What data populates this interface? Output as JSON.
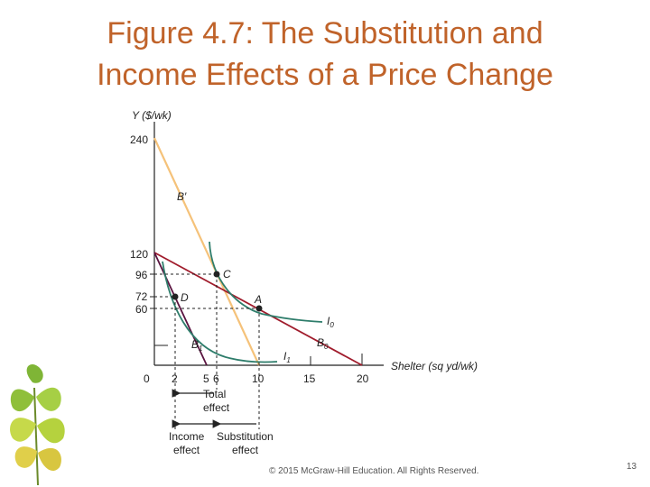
{
  "slide": {
    "title_line1": "Figure 4.7: The Substitution and",
    "title_line2": "Income Effects of a Price Change",
    "copyright": "© 2015 McGraw-Hill Education. All Rights Reserved.",
    "page_number": "13",
    "decoration_icon": "ginkgo-leaf-icon"
  },
  "diagram": {
    "y_axis_label": "Y ($/wk)",
    "x_axis_label": "Shelter (sq yd/wk)",
    "y_ticks": [
      "240",
      "120",
      "96",
      "72",
      "60"
    ],
    "x_ticks": [
      "0",
      "2",
      "5",
      "6",
      "10",
      "15",
      "20"
    ],
    "points": {
      "C": "C",
      "D": "D",
      "A": "A"
    },
    "lines": {
      "B_prime": "B′",
      "B1": "B",
      "B1_sub": "1",
      "B0": "B",
      "B0_sub": "0",
      "I0": "I",
      "I0_sub": "0",
      "I1": "I",
      "I1_sub": "1"
    },
    "effects": {
      "total_line1": "Total",
      "total_line2": "effect",
      "income_line1": "Income",
      "income_line2": "effect",
      "substitution_line1": "Substitution",
      "substitution_line2": "effect"
    },
    "colors": {
      "budget_original": "#a01c2c",
      "budget_new": "#5a1440",
      "budget_compensated": "#f5c27a",
      "indifference": "#2e7d6b",
      "axis": "#222222",
      "title": "#c0632a"
    }
  }
}
